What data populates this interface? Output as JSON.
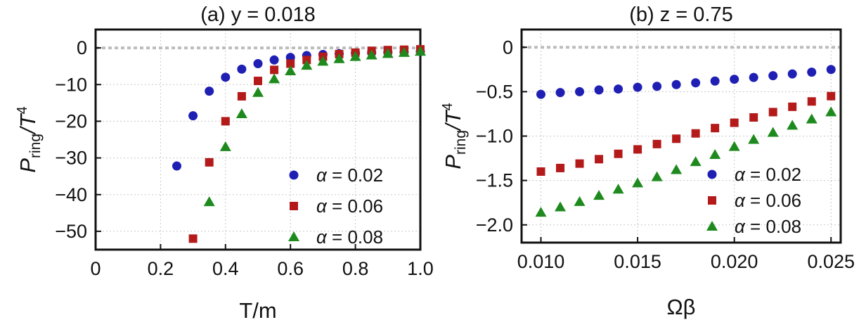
{
  "chart_data": [
    {
      "type": "scatter",
      "title": "(a) y = 0.018",
      "xlabel": "T/m",
      "ylabel": {
        "base": "P",
        "subscript": "ring",
        "slash": "/",
        "denom": "T",
        "power": "4"
      },
      "xlim": [
        0,
        1.0
      ],
      "ylim": [
        -55,
        5
      ],
      "xticks": [
        0,
        0.2,
        0.4,
        0.6,
        0.8,
        1.0
      ],
      "xtick_labels": [
        "0",
        "0.2",
        "0.4",
        "0.6",
        "0.8",
        "1.0"
      ],
      "yticks": [
        0,
        -10,
        -20,
        -30,
        -40,
        -50
      ],
      "ytick_labels": [
        "0",
        "−10",
        "−20",
        "−30",
        "−40",
        "−50"
      ],
      "grid": true,
      "reference_line_y": 0,
      "legend_placement": "bottom-right",
      "series": [
        {
          "name_symbol": "α",
          "name_value": " = 0.02",
          "color": "#1f1fb4",
          "marker": "circle",
          "x": [
            0.25,
            0.3,
            0.35,
            0.4,
            0.45,
            0.5,
            0.55,
            0.6,
            0.65,
            0.7,
            0.75,
            0.8,
            0.85,
            0.9,
            0.95,
            1.0
          ],
          "y": [
            -32.2,
            -18.5,
            -11.8,
            -8.0,
            -5.8,
            -4.3,
            -3.3,
            -2.6,
            -2.1,
            -1.8,
            -1.6,
            -1.4,
            -1.3,
            -1.2,
            -1.1,
            -1.0
          ]
        },
        {
          "name_symbol": "α",
          "name_value": " = 0.06",
          "color": "#b41a1a",
          "marker": "square",
          "x": [
            0.3,
            0.35,
            0.4,
            0.45,
            0.5,
            0.55,
            0.6,
            0.65,
            0.7,
            0.75,
            0.8,
            0.85,
            0.9,
            0.95,
            1.0
          ],
          "y": [
            -52.0,
            -31.2,
            -20.0,
            -13.2,
            -9.0,
            -6.0,
            -4.3,
            -3.3,
            -2.4,
            -1.7,
            -1.3,
            -0.8,
            -0.6,
            -0.5,
            -0.4
          ]
        },
        {
          "name_symbol": "α",
          "name_value": " = 0.08",
          "color": "#1e8a1e",
          "marker": "triangle",
          "x": [
            0.35,
            0.4,
            0.45,
            0.5,
            0.55,
            0.6,
            0.65,
            0.7,
            0.75,
            0.8,
            0.85,
            0.9,
            0.95,
            1.0
          ],
          "y": [
            -42.0,
            -27.0,
            -18.0,
            -12.2,
            -8.5,
            -6.3,
            -4.8,
            -3.7,
            -3.0,
            -2.4,
            -2.0,
            -1.6,
            -1.3,
            -1.0
          ]
        }
      ]
    },
    {
      "type": "scatter",
      "title": "(b) z = 0.75",
      "xlabel": "Ωβ",
      "ylabel": {
        "base": "P",
        "subscript": "ring",
        "slash": "/",
        "denom": "T",
        "power": "4"
      },
      "xlim": [
        0.009,
        0.0255
      ],
      "ylim": [
        -2.2,
        0.2
      ],
      "xticks": [
        0.01,
        0.015,
        0.02,
        0.025
      ],
      "xtick_labels": [
        "0.010",
        "0.015",
        "0.020",
        "0.025"
      ],
      "yticks": [
        0,
        -0.5,
        -1.0,
        -1.5,
        -2.0
      ],
      "ytick_labels": [
        "0",
        "−0.5",
        "−1.0",
        "−1.5",
        "−2.0"
      ],
      "grid": true,
      "reference_line_y": 0,
      "legend_placement": "bottom-right",
      "series": [
        {
          "name_symbol": "α",
          "name_value": " = 0.02",
          "color": "#1f1fb4",
          "marker": "circle",
          "x": [
            0.01,
            0.011,
            0.012,
            0.013,
            0.014,
            0.015,
            0.016,
            0.017,
            0.018,
            0.019,
            0.02,
            0.021,
            0.022,
            0.023,
            0.024,
            0.025
          ],
          "y": [
            -0.53,
            -0.51,
            -0.5,
            -0.48,
            -0.47,
            -0.45,
            -0.44,
            -0.42,
            -0.4,
            -0.38,
            -0.36,
            -0.34,
            -0.32,
            -0.3,
            -0.28,
            -0.25
          ]
        },
        {
          "name_symbol": "α",
          "name_value": " = 0.06",
          "color": "#b41a1a",
          "marker": "square",
          "x": [
            0.01,
            0.011,
            0.012,
            0.013,
            0.014,
            0.015,
            0.016,
            0.017,
            0.018,
            0.019,
            0.02,
            0.021,
            0.022,
            0.023,
            0.024,
            0.025
          ],
          "y": [
            -1.4,
            -1.36,
            -1.31,
            -1.26,
            -1.2,
            -1.15,
            -1.09,
            -1.03,
            -0.97,
            -0.91,
            -0.85,
            -0.79,
            -0.73,
            -0.67,
            -0.61,
            -0.55
          ]
        },
        {
          "name_symbol": "α",
          "name_value": " = 0.08",
          "color": "#1e8a1e",
          "marker": "triangle",
          "x": [
            0.01,
            0.011,
            0.012,
            0.013,
            0.014,
            0.015,
            0.016,
            0.017,
            0.018,
            0.019,
            0.02,
            0.021,
            0.022,
            0.023,
            0.024,
            0.025
          ],
          "y": [
            -1.86,
            -1.8,
            -1.74,
            -1.67,
            -1.6,
            -1.53,
            -1.46,
            -1.38,
            -1.29,
            -1.21,
            -1.12,
            -1.04,
            -0.96,
            -0.88,
            -0.81,
            -0.73
          ]
        }
      ]
    }
  ]
}
